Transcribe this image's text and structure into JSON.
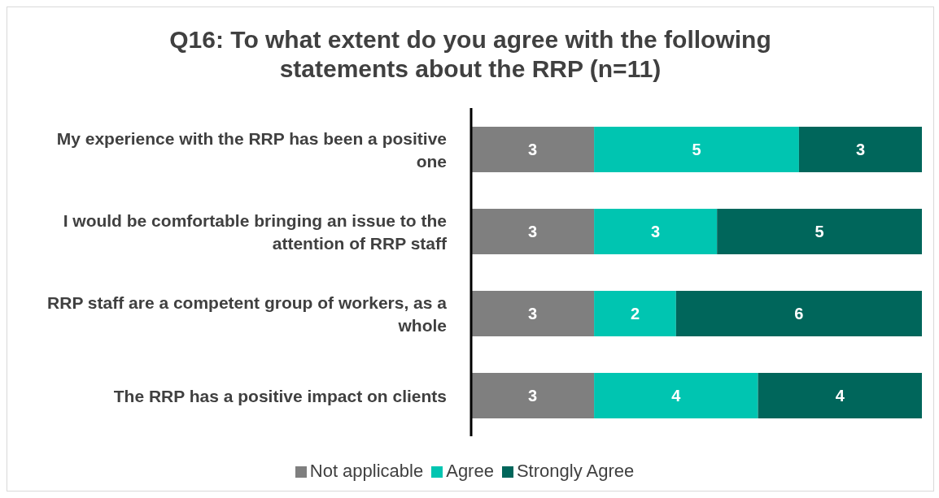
{
  "chart_data": {
    "type": "bar",
    "orientation": "horizontal",
    "stacked": true,
    "title": "Q16: To what extent do you agree with the following statements about the RRP (n=11)",
    "categories": [
      "My experience with the RRP has been a positive one",
      "I would be comfortable bringing an issue to the attention of RRP staff",
      "RRP staff are a competent group of workers, as a whole",
      "The RRP has a positive impact on clients"
    ],
    "series": [
      {
        "name": "Not applicable",
        "color": "#7f7f7f",
        "values": [
          3,
          3,
          3,
          3
        ]
      },
      {
        "name": "Agree",
        "color": "#00c5b1",
        "values": [
          5,
          3,
          2,
          4
        ]
      },
      {
        "name": "Strongly Agree",
        "color": "#00665b",
        "values": [
          3,
          5,
          6,
          4
        ]
      }
    ],
    "data_labels": true,
    "legend": "bottom",
    "grid": false
  }
}
